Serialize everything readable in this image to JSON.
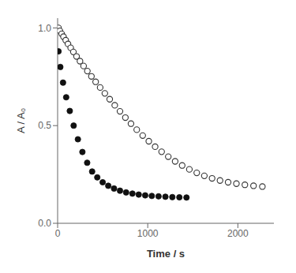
{
  "chart_data": {
    "type": "scatter",
    "xlabel": "Time / s",
    "ylabel": "A / A₀",
    "xlim": [
      0,
      2400
    ],
    "ylim": [
      0.0,
      1.05
    ],
    "xticks": [
      0,
      1000,
      2000
    ],
    "yticks": [
      {
        "value": 0,
        "label": "0.0"
      },
      0.5,
      {
        "value": 1,
        "label": "1.0"
      }
    ],
    "grid": false,
    "series": [
      {
        "color": "#333333",
        "marker": "open_circle",
        "x": [
          10,
          25,
          45,
          65,
          90,
          115,
          145,
          175,
          210,
          248,
          288,
          330,
          375,
          422,
          472,
          524,
          578,
          634,
          692,
          752,
          814,
          878,
          944,
          1012,
          1082,
          1154,
          1228,
          1304,
          1382,
          1462,
          1544,
          1628,
          1714,
          1802,
          1892,
          1984,
          2078,
          2174,
          2272
        ],
        "values": [
          1.0,
          0.985,
          0.97,
          0.955,
          0.937,
          0.918,
          0.898,
          0.877,
          0.854,
          0.83,
          0.805,
          0.779,
          0.752,
          0.724,
          0.695,
          0.665,
          0.635,
          0.604,
          0.573,
          0.541,
          0.51,
          0.479,
          0.449,
          0.42,
          0.392,
          0.366,
          0.341,
          0.317,
          0.296,
          0.276,
          0.258,
          0.243,
          0.23,
          0.219,
          0.21,
          0.203,
          0.197,
          0.192,
          0.188
        ]
      },
      {
        "color": "#111111",
        "marker": "circle",
        "x": [
          10,
          30,
          60,
          95,
          135,
          178,
          225,
          275,
          328,
          383,
          440,
          500,
          562,
          626,
          692,
          760,
          830,
          900,
          972,
          1045,
          1120,
          1196,
          1273,
          1351,
          1430
        ],
        "values": [
          0.88,
          0.8,
          0.72,
          0.645,
          0.575,
          0.5,
          0.43,
          0.365,
          0.31,
          0.265,
          0.235,
          0.21,
          0.192,
          0.178,
          0.167,
          0.158,
          0.152,
          0.147,
          0.143,
          0.14,
          0.138,
          0.136,
          0.134,
          0.133,
          0.132
        ]
      }
    ]
  }
}
